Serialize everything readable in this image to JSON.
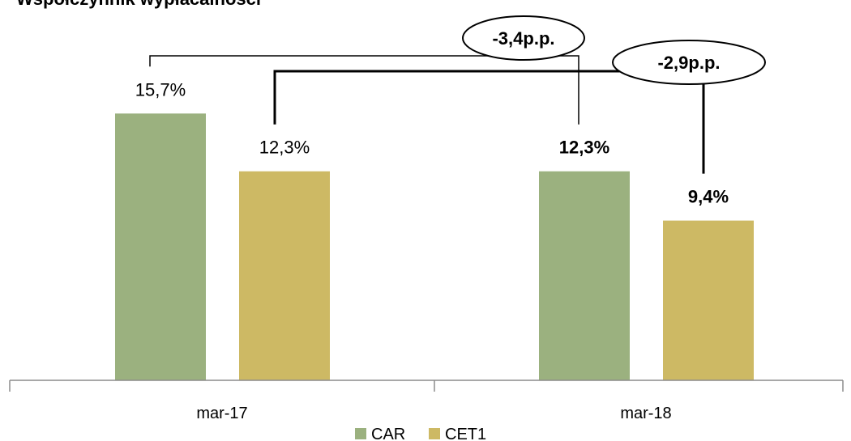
{
  "chart_data": {
    "type": "bar",
    "title": "Współczynnik wypłacalności",
    "categories": [
      "mar-17",
      "mar-18"
    ],
    "series": [
      {
        "name": "CAR",
        "values": [
          15.7,
          12.3
        ],
        "labels": [
          "15,7%",
          "12,3%"
        ],
        "color": "#9bb17f"
      },
      {
        "name": "CET1",
        "values": [
          12.3,
          9.4
        ],
        "labels": [
          "12,3%",
          "9,4%"
        ],
        "color": "#cdb964"
      }
    ],
    "ylim": [
      0,
      20
    ],
    "grid": false,
    "legend": "bottom",
    "annotations": [
      {
        "text": "-3,4p.p.",
        "series": "CAR",
        "from": "mar-17",
        "to": "mar-18"
      },
      {
        "text": "-2,9p.p.",
        "series": "CET1",
        "from": "mar-17",
        "to": "mar-18"
      }
    ]
  }
}
